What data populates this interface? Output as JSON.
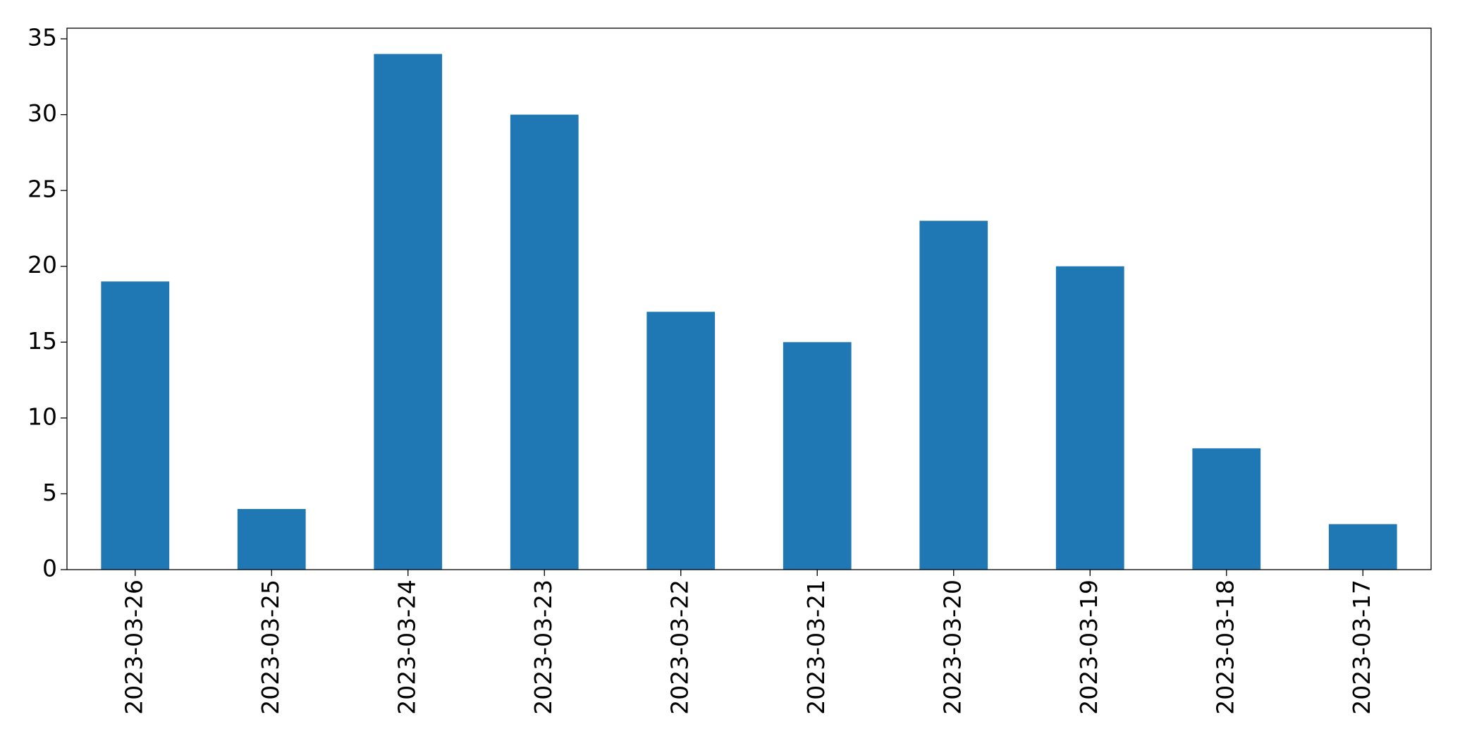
{
  "chart_data": {
    "type": "bar",
    "categories": [
      "2023-03-26",
      "2023-03-25",
      "2023-03-24",
      "2023-03-23",
      "2023-03-22",
      "2023-03-21",
      "2023-03-20",
      "2023-03-19",
      "2023-03-18",
      "2023-03-17"
    ],
    "values": [
      19,
      4,
      34,
      30,
      17,
      15,
      23,
      20,
      8,
      3
    ],
    "color": "#1f77b4",
    "ylim": [
      0,
      35.7
    ],
    "yticks": [
      0,
      5,
      10,
      15,
      20,
      25,
      30,
      35
    ],
    "grid": false
  }
}
